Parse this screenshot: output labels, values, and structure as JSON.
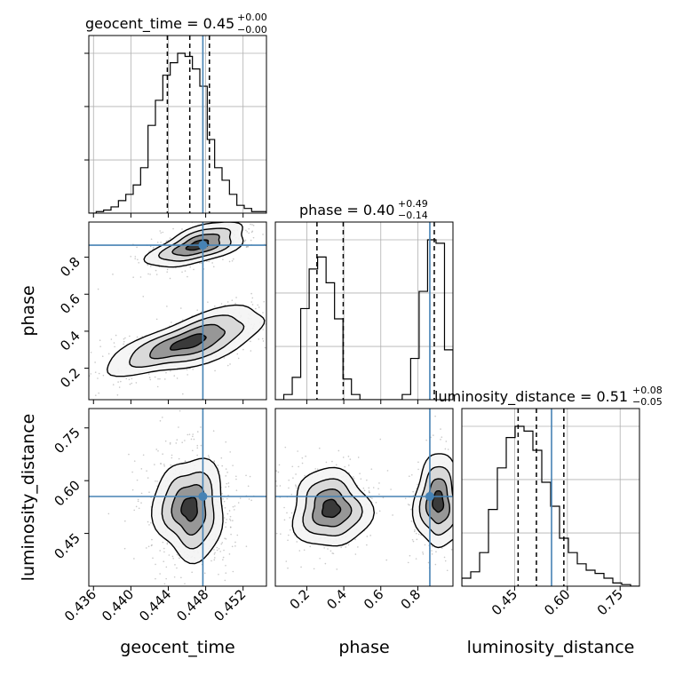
{
  "colors": {
    "truth": "#4682b4",
    "line": "#000000",
    "grid": "#b0b0b0",
    "fill_light": "#f2f2f2",
    "fill_mid": "#a0a0a0",
    "fill_dark": "#404040"
  },
  "chart_data": {
    "type": "corner",
    "parameters": [
      "geocent_time",
      "phase",
      "luminosity_distance"
    ],
    "truths": {
      "geocent_time": 0.4477,
      "phase": 0.865,
      "luminosity_distance": 0.555
    },
    "titles": {
      "geocent_time": {
        "label": "geocent_time = 0.45",
        "sup": "+0.00",
        "sub": "−0.00"
      },
      "phase": {
        "label": "phase = 0.40",
        "sup": "+0.49",
        "sub": "−0.14"
      },
      "luminosity_distance": {
        "label": "luminosity_distance = 0.51",
        "sup": "+0.08",
        "sub": "−0.05"
      }
    },
    "axis_labels": {
      "geocent_time": "geocent_time",
      "phase": "phase",
      "luminosity_distance": "luminosity_distance"
    },
    "ranges": {
      "geocent_time": [
        0.4355,
        0.4545
      ],
      "phase": [
        0.03,
        0.99
      ],
      "luminosity_distance": [
        0.3,
        0.805
      ]
    },
    "ticks": {
      "geocent_time": [
        "0.436",
        "0.440",
        "0.444",
        "0.448",
        "0.452"
      ],
      "phase": [
        "0.2",
        "0.4",
        "0.6",
        "0.8"
      ],
      "luminosity_distance": [
        "0.45",
        "0.60",
        "0.75"
      ]
    },
    "quantiles": {
      "geocent_time": [
        0.4439,
        0.4463,
        0.4484
      ],
      "phase": [
        0.255,
        0.397,
        0.889
      ],
      "luminosity_distance": [
        0.46,
        0.512,
        0.59
      ]
    },
    "histograms": {
      "geocent_time": {
        "edges": [
          0.4355,
          0.4545
        ],
        "counts": [
          0,
          1,
          2,
          4,
          8,
          12,
          18,
          29,
          56,
          72,
          88,
          96,
          102,
          100,
          92,
          81,
          47,
          29,
          21,
          12,
          5,
          3,
          1,
          1
        ]
      },
      "phase": {
        "edges": [
          0.03,
          0.99
        ],
        "counts": [
          0,
          3,
          13,
          53,
          76,
          83,
          68,
          47,
          12,
          3,
          0,
          0,
          0,
          0,
          0,
          3,
          24,
          63,
          93,
          91,
          29
        ]
      },
      "luminosity_distance": {
        "edges": [
          0.3,
          0.805
        ],
        "counts": [
          5,
          9,
          21,
          48,
          74,
          93,
          100,
          97,
          85,
          65,
          50,
          30,
          21,
          14,
          10,
          8,
          5,
          2,
          1,
          0
        ]
      }
    }
  }
}
